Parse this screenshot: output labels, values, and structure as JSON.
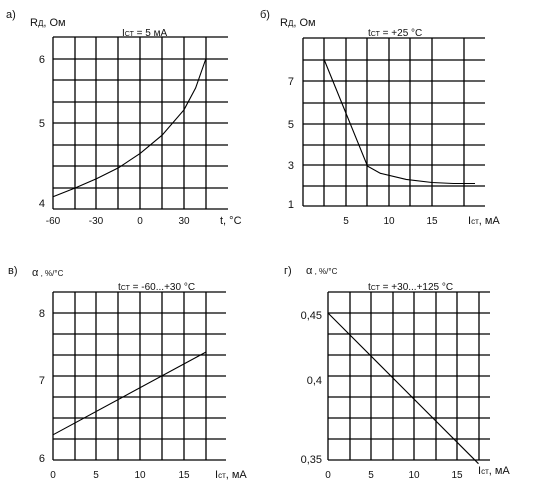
{
  "chart_data": [
    {
      "panel": "а)",
      "type": "line",
      "ylabel_main": "R",
      "ylabel_sub": "Д",
      "ylabel_unit": ", Ом",
      "annotation_main": "I",
      "annotation_sub": "СТ",
      "annotation_rest": " = 5 мА",
      "xlabel": "t, °C",
      "x_ticks": [
        -60,
        -30,
        0,
        30
      ],
      "y_ticks": [
        4,
        5,
        6
      ],
      "series": [
        {
          "name": "R_D(t)",
          "x": [
            -60,
            -45,
            -30,
            -15,
            0,
            15,
            30,
            38,
            45
          ],
          "y": [
            4.1,
            4.22,
            4.35,
            4.5,
            4.7,
            4.95,
            5.3,
            5.6,
            6.0
          ]
        }
      ]
    },
    {
      "panel": "б)",
      "type": "line",
      "ylabel_main": "R",
      "ylabel_sub": "Д",
      "ylabel_unit": ", Ом",
      "annotation_main": "t",
      "annotation_sub": "СТ",
      "annotation_rest": " = +25 °C",
      "xlabel_main": "I",
      "xlabel_sub": "ст",
      "xlabel_rest": ", мА",
      "x_ticks": [
        5,
        10,
        15
      ],
      "y_ticks": [
        1,
        3,
        5,
        7
      ],
      "series": [
        {
          "name": "R_D(I)",
          "x": [
            2.5,
            7.5,
            9,
            12,
            15,
            17.5,
            20
          ],
          "y": [
            8,
            2.85,
            2.5,
            2.2,
            2.05,
            2.0,
            2.0
          ]
        }
      ]
    },
    {
      "panel": "в)",
      "type": "line",
      "ylabel_main": "α",
      "ylabel_unit": " , %/°C",
      "annotation_main": "t",
      "annotation_sub": "СТ",
      "annotation_rest": " = -60...+30 °C",
      "xlabel_main": "I",
      "xlabel_sub": "ст",
      "xlabel_rest": ", мА",
      "x_ticks": [
        0,
        5,
        10,
        15
      ],
      "y_ticks": [
        6,
        7,
        8
      ],
      "series": [
        {
          "name": "α(I)",
          "x": [
            0,
            17.5
          ],
          "y": [
            6.32,
            7.46
          ]
        }
      ]
    },
    {
      "panel": "г)",
      "type": "line",
      "ylabel_main": "α",
      "ylabel_unit": " , %/°C",
      "annotation_main": "t",
      "annotation_sub": "СТ",
      "annotation_rest": " = +30...+125 °C",
      "xlabel_main": "I",
      "xlabel_sub": "ст",
      "xlabel_rest": ", мА",
      "x_ticks": [
        0,
        5,
        10,
        15
      ],
      "y_ticks": [
        "0,35",
        "0,4",
        "0,45"
      ],
      "series": [
        {
          "name": "α(I)",
          "x": [
            0,
            17.5
          ],
          "y": [
            0.45,
            0.3475
          ]
        }
      ]
    }
  ]
}
